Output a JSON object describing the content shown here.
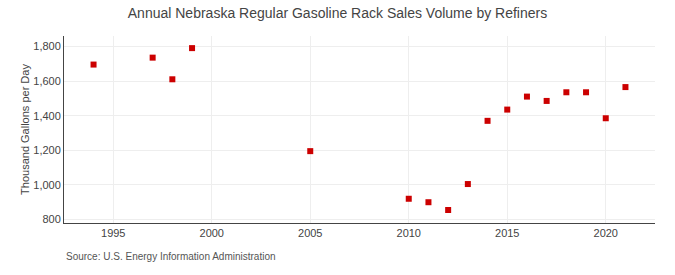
{
  "chart_data": {
    "type": "scatter",
    "title": "Annual Nebraska Regular Gasoline Rack Sales Volume by Refiners",
    "ylabel": "Thousand Gallons per Day",
    "annotations": [
      "Source: U.S. Energy Information Administration"
    ],
    "x": [
      1994,
      1997,
      1998,
      1999,
      2005,
      2010,
      2011,
      2012,
      2013,
      2014,
      2015,
      2016,
      2017,
      2018,
      2019,
      2020,
      2021
    ],
    "values": [
      1695,
      1735,
      1610,
      1790,
      1195,
      920,
      900,
      855,
      1005,
      1370,
      1435,
      1510,
      1485,
      1535,
      1535,
      1385,
      1565
    ],
    "color": "#cc0000",
    "marker": "square",
    "xlim": [
      1992.5,
      2022.5
    ],
    "xticks": [
      1995,
      2000,
      2005,
      2010,
      2015,
      2020
    ],
    "ylim": [
      780,
      1860
    ],
    "yticks": [
      800,
      {
        "value": 1000,
        "label": "1,000"
      },
      {
        "value": 1200,
        "label": "1,200"
      },
      {
        "value": 1400,
        "label": "1,400"
      },
      {
        "value": 1600,
        "label": "1,600"
      },
      {
        "value": 1800,
        "label": "1,800"
      }
    ],
    "grid": true
  }
}
